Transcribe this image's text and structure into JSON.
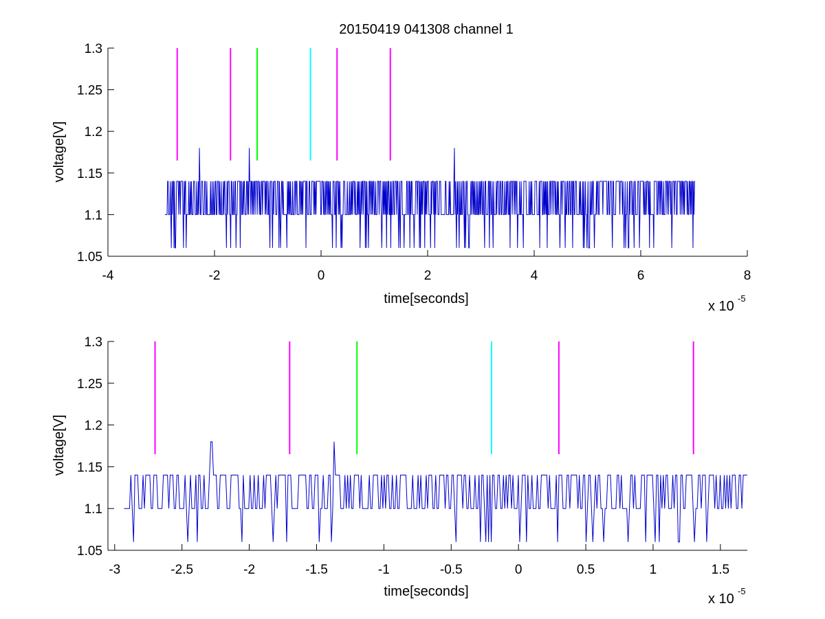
{
  "chart_data": [
    {
      "type": "line",
      "title": "20150419 041308 channel 1",
      "xlabel": "time[seconds]",
      "ylabel": "voltage[V]",
      "x_multiplier_label": "x 10",
      "x_multiplier_exp": "-5",
      "xlim": [
        -4,
        8
      ],
      "ylim": [
        1.05,
        1.3
      ],
      "xticks": [
        -4,
        -2,
        0,
        2,
        4,
        6,
        8
      ],
      "xtick_labels": [
        "-4",
        "-2",
        "0",
        "2",
        "4",
        "6",
        "8"
      ],
      "yticks": [
        1.05,
        1.1,
        1.15,
        1.2,
        1.25,
        1.3
      ],
      "ytick_labels": [
        "1.05",
        "1.1",
        "1.15",
        "1.2",
        "1.25",
        "1.3"
      ],
      "grid": false,
      "signal": {
        "color": "#0000cc",
        "x_start": -2.93,
        "x_end": 7.02,
        "levels": [
          1.06,
          1.1,
          1.14
        ],
        "baseline": 1.1,
        "spikes": [
          {
            "x": -2.28,
            "y": 1.18
          },
          {
            "x": -1.35,
            "y": 1.18
          },
          {
            "x": 2.5,
            "y": 1.18
          }
        ]
      },
      "markers": [
        {
          "x": -2.7,
          "y0": 1.165,
          "y1": 1.3,
          "color": "#ff00ff"
        },
        {
          "x": -1.7,
          "y0": 1.165,
          "y1": 1.3,
          "color": "#ff00ff"
        },
        {
          "x": -1.2,
          "y0": 1.165,
          "y1": 1.3,
          "color": "#00ff00"
        },
        {
          "x": -0.2,
          "y0": 1.165,
          "y1": 1.3,
          "color": "#00ffff"
        },
        {
          "x": 0.3,
          "y0": 1.165,
          "y1": 1.3,
          "color": "#ff00ff"
        },
        {
          "x": 1.3,
          "y0": 1.165,
          "y1": 1.3,
          "color": "#ff00ff"
        }
      ]
    },
    {
      "type": "line",
      "title": "",
      "xlabel": "time[seconds]",
      "ylabel": "voltage[V]",
      "x_multiplier_label": "x 10",
      "x_multiplier_exp": "-5",
      "xlim": [
        -3.05,
        1.7
      ],
      "ylim": [
        1.05,
        1.3
      ],
      "xticks": [
        -3,
        -2.5,
        -2,
        -1.5,
        -1,
        -0.5,
        0,
        0.5,
        1,
        1.5
      ],
      "xtick_labels": [
        "-3",
        "-2.5",
        "-2",
        "-1.5",
        "-1",
        "-0.5",
        "0",
        "0.5",
        "1",
        "1.5"
      ],
      "yticks": [
        1.05,
        1.1,
        1.15,
        1.2,
        1.25,
        1.3
      ],
      "ytick_labels": [
        "1.05",
        "1.1",
        "1.15",
        "1.2",
        "1.25",
        "1.3"
      ],
      "grid": false,
      "signal": {
        "color": "#0000cc",
        "x_start": -2.93,
        "x_end": 1.7,
        "levels": [
          1.06,
          1.1,
          1.14
        ],
        "baseline": 1.1,
        "spikes": [
          {
            "x": -2.28,
            "y": 1.18
          },
          {
            "x": -1.37,
            "y": 1.18
          }
        ]
      },
      "markers": [
        {
          "x": -2.7,
          "y0": 1.165,
          "y1": 1.3,
          "color": "#ff00ff"
        },
        {
          "x": -1.7,
          "y0": 1.165,
          "y1": 1.3,
          "color": "#ff00ff"
        },
        {
          "x": -1.2,
          "y0": 1.165,
          "y1": 1.3,
          "color": "#00ff00"
        },
        {
          "x": -0.2,
          "y0": 1.165,
          "y1": 1.3,
          "color": "#00ffff"
        },
        {
          "x": 0.3,
          "y0": 1.165,
          "y1": 1.3,
          "color": "#ff00ff"
        },
        {
          "x": 1.3,
          "y0": 1.165,
          "y1": 1.3,
          "color": "#ff00ff"
        }
      ]
    }
  ]
}
